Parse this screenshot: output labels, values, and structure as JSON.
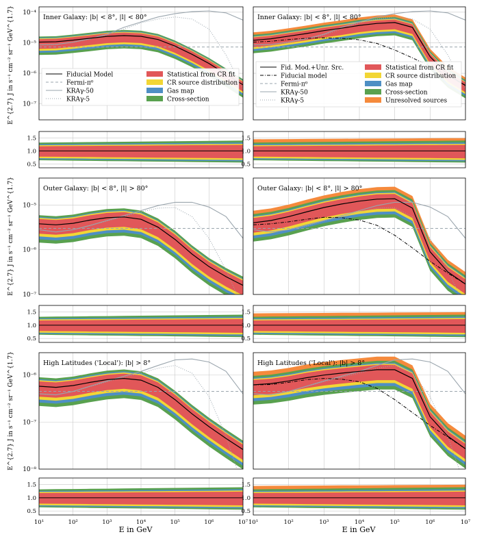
{
  "figure": {
    "x_axis_label": "E in GeV",
    "y_axis_label": "E^{2.7} J in s⁻¹ cm⁻² sr⁻¹ GeV^{1.7}"
  },
  "legend_left": [
    {
      "label": "Fiducial Model",
      "style": "solid-black"
    },
    {
      "label": "Fermi-π⁰",
      "style": "dashed-gray"
    },
    {
      "label": "KRAγ-50",
      "style": "solid-gray"
    },
    {
      "label": "KRAγ-5",
      "style": "dotted-gray"
    },
    {
      "label": "Statistical from CR fit",
      "style": "band-red"
    },
    {
      "label": "CR source distribution",
      "style": "band-yellow"
    },
    {
      "label": "Gas map",
      "style": "band-blue"
    },
    {
      "label": "Cross-section",
      "style": "band-green"
    }
  ],
  "legend_right": [
    {
      "label": "Fid. Mod.+Unr. Src.",
      "style": "solid-black"
    },
    {
      "label": "Fiducial model",
      "style": "dashdot-black"
    },
    {
      "label": "Fermi-π⁰",
      "style": "dashed-gray"
    },
    {
      "label": "KRAγ-50",
      "style": "solid-gray"
    },
    {
      "label": "KRAγ-5",
      "style": "dotted-gray"
    },
    {
      "label": "Statistical from CR fit",
      "style": "band-red"
    },
    {
      "label": "CR source distribution",
      "style": "band-yellow"
    },
    {
      "label": "Gas map",
      "style": "band-blue"
    },
    {
      "label": "Cross-section",
      "style": "band-green"
    },
    {
      "label": "Unresolved sources",
      "style": "band-orange"
    }
  ],
  "colors": {
    "statistical": "#e15759",
    "cr_source": "#f2d635",
    "gas_map": "#4e8fc4",
    "cross_section": "#59a14f",
    "unresolved": "#f58a3c",
    "fermi": "#9aa5ad",
    "kra": "#9aa5ad",
    "grid": "#c8c8c8"
  },
  "x_ticks": [
    "10¹",
    "10²",
    "10³",
    "10⁴",
    "10⁵",
    "10⁶",
    "10⁷"
  ],
  "ratio_ticks": [
    "0.5",
    "1.0",
    "1.5"
  ],
  "chart_data": [
    {
      "type": "line",
      "region": "Inner Galaxy: |b| < 8°, |l| < 80°",
      "with_unresolved": false,
      "x_scale": "log",
      "y_scale": "log",
      "xlim": [
        10,
        10000000
      ],
      "ylim": [
        3e-08,
        0.00015
      ],
      "y_tick_labels": [
        "10⁻⁷",
        "10⁻⁶",
        "10⁻⁵",
        "10⁻⁴"
      ],
      "x": [
        10,
        31.6,
        100,
        316,
        1000,
        3162,
        10000,
        31623,
        100000,
        316228,
        1000000,
        3162278,
        10000000
      ],
      "fiducial": [
        1.05e-05,
        1.08e-05,
        1.22e-05,
        1.4e-05,
        1.62e-05,
        1.72e-05,
        1.63e-05,
        1.28e-05,
        7.8e-06,
        4.2e-06,
        2.1e-06,
        9.5e-07,
        4.2e-07
      ],
      "fermi": [
        7.3e-06,
        7.3e-06,
        7.3e-06,
        7.3e-06,
        7.3e-06,
        7.3e-06,
        7.3e-06,
        7.3e-06,
        7.3e-06,
        7.3e-06,
        7.3e-06,
        7.3e-06,
        7.3e-06
      ],
      "kra50": [
        8.5e-06,
        8.8e-06,
        1.05e-05,
        1.35e-05,
        1.9e-05,
        3.2e-05,
        4.8e-05,
        7e-05,
        9e-05,
        0.000105,
        0.00011,
        9.5e-05,
        5.5e-05
      ],
      "kra5": [
        8.5e-06,
        8.7e-06,
        1.03e-05,
        1.32e-05,
        1.8e-05,
        2.8e-05,
        4.5e-05,
        6e-05,
        7e-05,
        6e-05,
        2.8e-05,
        4e-06,
        3e-07
      ],
      "unresolved_total": [],
      "band_stat_rel": 0.25,
      "band_cr_rel": 0.07,
      "band_gas_rel": 0.07,
      "band_xsec_rel": 0.13,
      "band_unres_rel": 0
    },
    {
      "type": "line",
      "region": "Inner Galaxy: |b| < 8°, |l| < 80°",
      "with_unresolved": true,
      "x_scale": "log",
      "y_scale": "log",
      "xlim": [
        10,
        10000000
      ],
      "ylim": [
        3e-08,
        0.00015
      ],
      "y_tick_labels": [],
      "x": [
        10,
        31.6,
        100,
        316,
        1000,
        3162,
        10000,
        31623,
        100000,
        316228,
        1000000,
        3162278,
        10000000
      ],
      "fiducial": [
        1.05e-05,
        1.12e-05,
        1.28e-05,
        1.4e-05,
        1.45e-05,
        1.4e-05,
        1.25e-05,
        9.5e-06,
        5.8e-06,
        3.2e-06,
        1.7e-06,
        8.5e-07,
        4e-07
      ],
      "fermi": [
        7.3e-06,
        7.3e-06,
        7.3e-06,
        7.3e-06,
        7.3e-06,
        7.3e-06,
        7.3e-06,
        7.3e-06,
        7.3e-06,
        7.3e-06,
        7.3e-06,
        7.3e-06,
        7.3e-06
      ],
      "kra50": [
        8.5e-06,
        8.8e-06,
        1.05e-05,
        1.35e-05,
        1.9e-05,
        3.2e-05,
        4.8e-05,
        7e-05,
        9e-05,
        0.000105,
        0.00011,
        9.5e-05,
        5.5e-05
      ],
      "kra5": [
        8.5e-06,
        8.7e-06,
        1.03e-05,
        1.32e-05,
        1.8e-05,
        2.8e-05,
        4.5e-05,
        6e-05,
        7e-05,
        6e-05,
        2.8e-05,
        4e-06,
        3e-07
      ],
      "unresolved_total": [
        1.2e-05,
        1.35e-05,
        1.65e-05,
        2e-05,
        2.5e-05,
        3e-05,
        3.7e-05,
        4.3e-05,
        4.6e-05,
        3.2e-05,
        3.5e-06,
        9e-07,
        4e-07
      ],
      "band_stat_rel": 0.25,
      "band_cr_rel": 0.07,
      "band_gas_rel": 0.07,
      "band_xsec_rel": 0.13,
      "band_unres_rel": 0.3
    },
    {
      "type": "line",
      "region": "Outer Galaxy: |b| < 8°, |l| > 80°",
      "with_unresolved": false,
      "x_scale": "log",
      "y_scale": "log",
      "xlim": [
        10,
        10000000
      ],
      "ylim": [
        1e-07,
        4e-05
      ],
      "y_tick_labels": [
        "10⁻⁷",
        "10⁻⁶",
        "10⁻⁵"
      ],
      "x": [
        10,
        31.6,
        100,
        316,
        1000,
        3162,
        10000,
        31623,
        100000,
        316228,
        1000000,
        3162278,
        10000000
      ],
      "fiducial": [
        3.8e-06,
        3.6e-06,
        3.9e-06,
        4.6e-06,
        5.2e-06,
        5.4e-06,
        4.8e-06,
        3.2e-06,
        1.7e-06,
        8e-07,
        4.2e-07,
        2.5e-07,
        1.6e-07
      ],
      "fermi": [
        3e-06,
        3e-06,
        3e-06,
        3e-06,
        3e-06,
        3e-06,
        3e-06,
        3e-06,
        3e-06,
        3e-06,
        3e-06,
        3e-06,
        3e-06
      ],
      "kra50": [
        2.8e-06,
        2.5e-06,
        2.8e-06,
        3.5e-06,
        4.5e-06,
        5.8e-06,
        7.5e-06,
        9.7e-06,
        1.15e-05,
        1.15e-05,
        9e-06,
        5.5e-06,
        1.8e-06
      ],
      "kra5": [
        2.8e-06,
        2.5e-06,
        2.8e-06,
        3.4e-06,
        4.4e-06,
        5.5e-06,
        7e-06,
        8.5e-06,
        8.8e-06,
        5.5e-06,
        1.8e-06,
        3.5e-07,
        5e-08
      ],
      "unresolved_total": [],
      "band_stat_rel": 0.28,
      "band_cr_rel": 0.08,
      "band_gas_rel": 0.06,
      "band_xsec_rel": 0.14,
      "band_unres_rel": 0
    },
    {
      "type": "line",
      "region": "Outer Galaxy: |b| < 8°, |l| > 80°",
      "with_unresolved": true,
      "x_scale": "log",
      "y_scale": "log",
      "xlim": [
        10,
        10000000
      ],
      "ylim": [
        1e-07,
        4e-05
      ],
      "y_tick_labels": [],
      "x": [
        10,
        31.6,
        100,
        316,
        1000,
        3162,
        10000,
        31623,
        100000,
        316228,
        1000000,
        3162278,
        10000000
      ],
      "fiducial": [
        3.6e-06,
        3.8e-06,
        4.2e-06,
        4.8e-06,
        5.3e-06,
        5.2e-06,
        4.6e-06,
        3.5e-06,
        2.1e-06,
        1.1e-06,
        5.5e-07,
        3e-07,
        1.7e-07
      ],
      "fermi": [
        3e-06,
        3e-06,
        3e-06,
        3e-06,
        3e-06,
        3e-06,
        3e-06,
        3e-06,
        3e-06,
        3e-06,
        3e-06,
        3e-06,
        3e-06
      ],
      "kra50": [
        2.8e-06,
        2.5e-06,
        2.8e-06,
        3.5e-06,
        4.5e-06,
        5.8e-06,
        7.5e-06,
        9.7e-06,
        1.15e-05,
        1.15e-05,
        9e-06,
        5.5e-06,
        1.8e-06
      ],
      "kra5": [
        2.8e-06,
        2.5e-06,
        2.8e-06,
        3.4e-06,
        4.4e-06,
        5.5e-06,
        7e-06,
        8.5e-06,
        8.8e-06,
        5.5e-06,
        1.8e-06,
        3.5e-07,
        5e-08
      ],
      "unresolved_total": [
        4e-06,
        4.5e-06,
        5.5e-06,
        7e-06,
        8.8e-06,
        1.05e-05,
        1.22e-05,
        1.35e-05,
        1.38e-05,
        8.5e-06,
        9e-07,
        3.2e-07,
        1.7e-07
      ],
      "band_stat_rel": 0.28,
      "band_cr_rel": 0.08,
      "band_gas_rel": 0.06,
      "band_xsec_rel": 0.14,
      "band_unres_rel": 0.3
    },
    {
      "type": "line",
      "region": "High Latitudes ('Local'): |b| > 8°",
      "with_unresolved": false,
      "x_scale": "log",
      "y_scale": "log",
      "xlim": [
        10,
        10000000
      ],
      "ylim": [
        1e-08,
        3e-06
      ],
      "y_tick_labels": [
        "10⁻⁸",
        "10⁻⁷",
        "10⁻⁶"
      ],
      "x": [
        10,
        31.6,
        100,
        316,
        1000,
        3162,
        10000,
        31623,
        100000,
        316228,
        1000000,
        3162278,
        10000000
      ],
      "fiducial": [
        5.8e-07,
        5.5e-07,
        6e-07,
        7e-07,
        8e-07,
        8.5e-07,
        7.8e-07,
        5.5e-07,
        3e-07,
        1.5e-07,
        8e-08,
        4.5e-08,
        2.6e-08
      ],
      "fermi": [
        4.5e-07,
        4.5e-07,
        4.5e-07,
        4.5e-07,
        4.5e-07,
        4.5e-07,
        4.5e-07,
        4.5e-07,
        4.5e-07,
        4.5e-07,
        4.5e-07,
        4.5e-07,
        4.5e-07
      ],
      "kra50": [
        4e-07,
        3.8e-07,
        4.5e-07,
        5.8e-07,
        7.5e-07,
        9.5e-07,
        1.2e-06,
        1.6e-06,
        2.1e-06,
        2.2e-06,
        1.9e-06,
        1.2e-06,
        4e-07
      ],
      "kra5": [
        4e-07,
        3.8e-07,
        4.4e-07,
        5.7e-07,
        7.2e-07,
        9e-07,
        1.1e-06,
        1.4e-06,
        1.6e-06,
        1.1e-06,
        3.5e-07,
        5e-08,
        4e-09
      ],
      "unresolved_total": [],
      "band_stat_rel": 0.27,
      "band_cr_rel": 0.07,
      "band_gas_rel": 0.07,
      "band_xsec_rel": 0.14,
      "band_unres_rel": 0
    },
    {
      "type": "line",
      "region": "High Latitudes ('Local'): |b| > 8°",
      "with_unresolved": true,
      "x_scale": "log",
      "y_scale": "log",
      "xlim": [
        10,
        10000000
      ],
      "ylim": [
        1e-08,
        3e-06
      ],
      "y_tick_labels": [],
      "x": [
        10,
        31.6,
        100,
        316,
        1000,
        3162,
        10000,
        31623,
        100000,
        316228,
        1000000,
        3162278,
        10000000
      ],
      "fiducial": [
        6.2e-07,
        6.3e-07,
        7e-07,
        8e-07,
        8.5e-07,
        8.2e-07,
        7.2e-07,
        5.2e-07,
        3e-07,
        1.6e-07,
        8.5e-08,
        4.8e-08,
        2.7e-08
      ],
      "fermi": [
        4.5e-07,
        4.5e-07,
        4.5e-07,
        4.5e-07,
        4.5e-07,
        4.5e-07,
        4.5e-07,
        4.5e-07,
        4.5e-07,
        4.5e-07,
        4.5e-07,
        4.5e-07,
        4.5e-07
      ],
      "kra50": [
        4e-07,
        3.8e-07,
        4.5e-07,
        5.8e-07,
        7.5e-07,
        9.5e-07,
        1.2e-06,
        1.6e-06,
        2.1e-06,
        2.2e-06,
        1.9e-06,
        1.2e-06,
        4e-07
      ],
      "kra5": [
        4e-07,
        3.8e-07,
        4.4e-07,
        5.7e-07,
        7.2e-07,
        9e-07,
        1.1e-06,
        1.4e-06,
        1.6e-06,
        1.1e-06,
        3.5e-07,
        5e-08,
        4e-09
      ],
      "unresolved_total": [
        6.2e-07,
        6.6e-07,
        7.5e-07,
        8.8e-07,
        1e-06,
        1.1e-06,
        1.2e-06,
        1.3e-06,
        1.3e-06,
        8.5e-07,
        1.3e-07,
        5e-08,
        2.7e-08
      ],
      "band_stat_rel": 0.27,
      "band_cr_rel": 0.07,
      "band_gas_rel": 0.07,
      "band_xsec_rel": 0.14,
      "band_unres_rel": 0.35
    }
  ]
}
